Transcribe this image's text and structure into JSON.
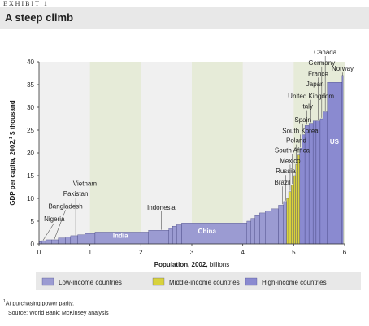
{
  "exhibit": "EXHIBIT 1",
  "title": "A steep climb",
  "footnote_mark": "1",
  "footnote": "At purchasing power parity.",
  "source": "Source: World Bank; McKinsey analysis",
  "colors": {
    "low": "#9b9bd2",
    "middle": "#d8d23c",
    "high": "#8a8ad0",
    "band": "#e6ebd8",
    "plot_bg": "#f0f0f0"
  },
  "chart_data": {
    "type": "bar",
    "xlabel": "Population, 2002, billions",
    "ylabel_main": "GDP per capita, 2002,",
    "ylabel_sup": "1",
    "ylabel_unit": " $ thousand",
    "xlim": [
      0,
      6
    ],
    "ylim": [
      0,
      40
    ],
    "xticks": [
      "0",
      "1",
      "2",
      "3",
      "4",
      "5",
      "6"
    ],
    "yticks": [
      "0",
      "5",
      "10",
      "15",
      "20",
      "25",
      "30",
      "35",
      "40"
    ],
    "legend": [
      {
        "key": "low",
        "label": "Low-income countries"
      },
      {
        "key": "middle",
        "label": "Middle-income countries"
      },
      {
        "key": "high",
        "label": "High-income countries"
      }
    ],
    "bars": [
      {
        "x0": 0.0,
        "x1": 0.05,
        "y": 0.5,
        "g": "low"
      },
      {
        "x0": 0.05,
        "x1": 0.13,
        "y": 0.7,
        "g": "low"
      },
      {
        "x0": 0.13,
        "x1": 0.25,
        "y": 0.9,
        "g": "low"
      },
      {
        "x0": 0.25,
        "x1": 0.38,
        "y": 0.9,
        "g": "low"
      },
      {
        "x0": 0.38,
        "x1": 0.52,
        "y": 1.3,
        "g": "low"
      },
      {
        "x0": 0.52,
        "x1": 0.62,
        "y": 1.5,
        "g": "low"
      },
      {
        "x0": 0.62,
        "x1": 0.76,
        "y": 1.8,
        "g": "low"
      },
      {
        "x0": 0.76,
        "x1": 0.9,
        "y": 2.0,
        "g": "low"
      },
      {
        "x0": 0.9,
        "x1": 1.1,
        "y": 2.3,
        "g": "low"
      },
      {
        "x0": 1.1,
        "x1": 2.15,
        "y": 2.6,
        "g": "low"
      },
      {
        "x0": 2.15,
        "x1": 2.55,
        "y": 3.0,
        "g": "low"
      },
      {
        "x0": 2.55,
        "x1": 2.62,
        "y": 3.4,
        "g": "low"
      },
      {
        "x0": 2.62,
        "x1": 2.7,
        "y": 3.9,
        "g": "low"
      },
      {
        "x0": 2.7,
        "x1": 2.8,
        "y": 4.2,
        "g": "low"
      },
      {
        "x0": 2.8,
        "x1": 4.08,
        "y": 4.6,
        "g": "low"
      },
      {
        "x0": 4.08,
        "x1": 4.16,
        "y": 5.0,
        "g": "low"
      },
      {
        "x0": 4.16,
        "x1": 4.24,
        "y": 5.6,
        "g": "low"
      },
      {
        "x0": 4.24,
        "x1": 4.33,
        "y": 6.2,
        "g": "low"
      },
      {
        "x0": 4.33,
        "x1": 4.44,
        "y": 6.8,
        "g": "low"
      },
      {
        "x0": 4.44,
        "x1": 4.56,
        "y": 7.2,
        "g": "low"
      },
      {
        "x0": 4.56,
        "x1": 4.7,
        "y": 7.7,
        "g": "low"
      },
      {
        "x0": 4.7,
        "x1": 4.8,
        "y": 8.5,
        "g": "low"
      },
      {
        "x0": 4.8,
        "x1": 4.86,
        "y": 9.3,
        "g": "low"
      },
      {
        "x0": 4.86,
        "x1": 4.9,
        "y": 10.0,
        "g": "middle"
      },
      {
        "x0": 4.9,
        "x1": 4.95,
        "y": 11.5,
        "g": "middle"
      },
      {
        "x0": 4.95,
        "x1": 5.0,
        "y": 13.0,
        "g": "middle"
      },
      {
        "x0": 5.0,
        "x1": 5.04,
        "y": 15.0,
        "g": "middle"
      },
      {
        "x0": 5.04,
        "x1": 5.08,
        "y": 17.5,
        "g": "middle"
      },
      {
        "x0": 5.08,
        "x1": 5.12,
        "y": 19.5,
        "g": "middle"
      },
      {
        "x0": 5.12,
        "x1": 5.16,
        "y": 21.0,
        "g": "high"
      },
      {
        "x0": 5.16,
        "x1": 5.22,
        "y": 24.0,
        "g": "high"
      },
      {
        "x0": 5.22,
        "x1": 5.3,
        "y": 26.0,
        "g": "high"
      },
      {
        "x0": 5.3,
        "x1": 5.38,
        "y": 26.5,
        "g": "high"
      },
      {
        "x0": 5.38,
        "x1": 5.44,
        "y": 27.0,
        "g": "high"
      },
      {
        "x0": 5.44,
        "x1": 5.52,
        "y": 27.0,
        "g": "high"
      },
      {
        "x0": 5.52,
        "x1": 5.58,
        "y": 27.5,
        "g": "high"
      },
      {
        "x0": 5.58,
        "x1": 5.66,
        "y": 29.0,
        "g": "high"
      },
      {
        "x0": 5.66,
        "x1": 5.95,
        "y": 35.5,
        "g": "high"
      },
      {
        "x0": 5.95,
        "x1": 5.97,
        "y": 37.0,
        "g": "high"
      }
    ],
    "inside_labels": [
      {
        "text": "India",
        "x": 1.6,
        "y": 1.3,
        "color": "#ffffff"
      },
      {
        "text": "China",
        "x": 3.3,
        "y": 2.3,
        "color": "#ffffff"
      },
      {
        "text": "US",
        "x": 5.8,
        "y": 22.0,
        "color": "#ffffff"
      }
    ],
    "country_labels": [
      {
        "text": "Nigeria",
        "x": 0.08,
        "tx": 0.3,
        "ty": 5.0,
        "ly": 0.8
      },
      {
        "text": "Bangladesh",
        "x": 0.3,
        "tx": 0.52,
        "ty": 7.8,
        "ly": 1.0
      },
      {
        "text": "Pakistan",
        "x": 0.72,
        "tx": 0.72,
        "ty": 10.5,
        "ly": 1.9
      },
      {
        "text": "Vietnam",
        "x": 0.9,
        "tx": 0.9,
        "ty": 12.8,
        "ly": 2.1
      },
      {
        "text": "Indonesia",
        "x": 2.4,
        "tx": 2.4,
        "ty": 7.5,
        "ly": 3.1
      },
      {
        "text": "Brazil",
        "x": 4.78,
        "tx": 4.78,
        "ty": 13.0,
        "ly": 8.7
      },
      {
        "text": "Russia",
        "x": 4.84,
        "tx": 4.84,
        "ty": 15.5,
        "ly": 9.5
      },
      {
        "text": "Mexico",
        "x": 4.93,
        "tx": 4.93,
        "ty": 17.8,
        "ly": 11.7
      },
      {
        "text": "South Africa",
        "x": 4.97,
        "tx": 4.97,
        "ty": 20.1,
        "ly": 13.2
      },
      {
        "text": "Poland",
        "x": 5.05,
        "tx": 5.05,
        "ty": 22.2,
        "ly": 17.7
      },
      {
        "text": "South Korea",
        "x": 5.13,
        "tx": 5.13,
        "ty": 24.4,
        "ly": 21.2
      },
      {
        "text": "Spain",
        "x": 5.18,
        "tx": 5.18,
        "ty": 26.8,
        "ly": 24.2
      },
      {
        "text": "Italy",
        "x": 5.26,
        "tx": 5.26,
        "ty": 29.7,
        "ly": 26.2
      },
      {
        "text": "United Kingdom",
        "x": 5.34,
        "tx": 5.34,
        "ty": 32.0,
        "ly": 26.7
      },
      {
        "text": "Japan",
        "x": 5.42,
        "tx": 5.42,
        "ty": 34.6,
        "ly": 27.2
      },
      {
        "text": "France",
        "x": 5.48,
        "tx": 5.48,
        "ty": 36.9,
        "ly": 27.2
      },
      {
        "text": "Germany",
        "x": 5.55,
        "tx": 5.55,
        "ty": 39.3,
        "ly": 27.7
      },
      {
        "text": "Canada",
        "x": 5.62,
        "tx": 5.62,
        "ty": 41.6,
        "ly": 29.2
      },
      {
        "text": "Norway",
        "x": 5.96,
        "tx": 5.96,
        "ty": 38.0,
        "ly": 37.0
      }
    ]
  }
}
